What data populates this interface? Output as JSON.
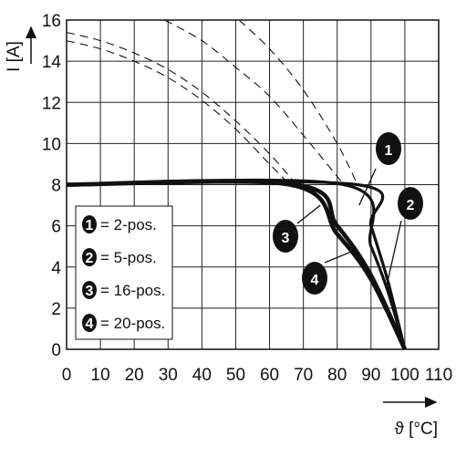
{
  "chart_data": {
    "type": "line",
    "xlabel": "ϑ [°C]",
    "ylabel": "I [A]",
    "xlim": [
      0,
      110
    ],
    "ylim": [
      0,
      16
    ],
    "xticks": [
      0,
      10,
      20,
      30,
      40,
      50,
      60,
      70,
      80,
      90,
      100,
      110
    ],
    "yticks": [
      0,
      2,
      4,
      6,
      8,
      10,
      12,
      14,
      16
    ],
    "grid": true,
    "legend_position": "left",
    "series": [
      {
        "name": "2-pos.",
        "badge": "1",
        "dashed": {
          "x": [
            51,
            60,
            70,
            80,
            86
          ],
          "y": [
            16,
            14.6,
            12.6,
            10.0,
            8.0
          ]
        },
        "solid": {
          "x": [
            0,
            86,
            90,
            95,
            100
          ],
          "y": [
            8,
            8,
            6.0,
            3.3,
            0
          ]
        }
      },
      {
        "name": "5-pos.",
        "badge": "2",
        "dashed": {
          "x": [
            29,
            40,
            50,
            60,
            70,
            80,
            82
          ],
          "y": [
            16,
            15.0,
            13.7,
            12.3,
            10.4,
            8.4,
            8.0
          ]
        },
        "solid": {
          "x": [
            0,
            82,
            90,
            95,
            100
          ],
          "y": [
            8,
            8,
            5.0,
            2.8,
            0
          ]
        }
      },
      {
        "name": "16-pos.",
        "badge": "3",
        "dashed": {
          "x": [
            0,
            10,
            20,
            30,
            40,
            50,
            60,
            68
          ],
          "y": [
            15.4,
            15.0,
            14.4,
            13.6,
            12.5,
            11.1,
            9.5,
            8.0
          ]
        },
        "solid": {
          "x": [
            0,
            68,
            80,
            90,
            100
          ],
          "y": [
            8,
            8,
            6.0,
            3.6,
            0
          ]
        }
      },
      {
        "name": "20-pos.",
        "badge": "4",
        "dashed": {
          "x": [
            0,
            10,
            20,
            30,
            40,
            50,
            60,
            66
          ],
          "y": [
            15.0,
            14.6,
            14.0,
            13.2,
            12.1,
            10.7,
            9.0,
            8.0
          ]
        },
        "solid": {
          "x": [
            0,
            66,
            80,
            90,
            100
          ],
          "y": [
            8,
            8,
            5.6,
            3.4,
            0
          ]
        }
      }
    ],
    "legend": [
      {
        "badge": "1",
        "label": "= 2-pos."
      },
      {
        "badge": "2",
        "label": "= 5-pos."
      },
      {
        "badge": "3",
        "label": "= 16-pos."
      },
      {
        "badge": "4",
        "label": "= 20-pos."
      }
    ]
  }
}
